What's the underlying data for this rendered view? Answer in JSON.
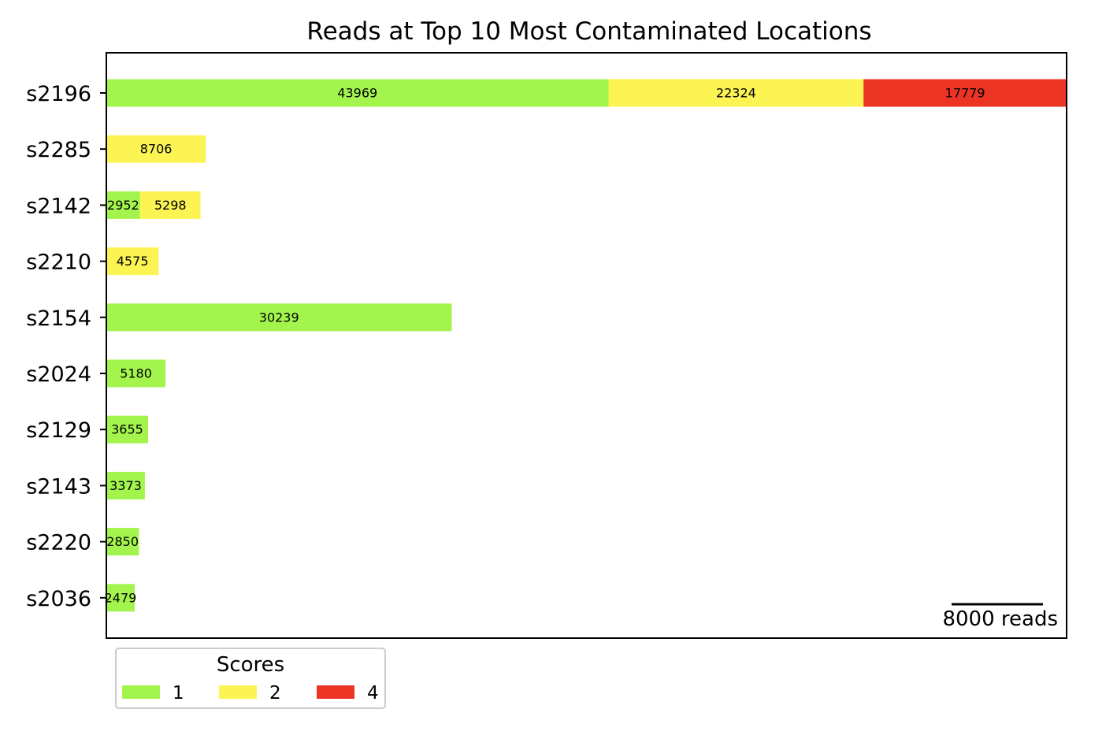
{
  "chart_data": {
    "type": "bar",
    "orientation": "horizontal",
    "stacked": true,
    "title": "Reads at Top 10 Most Contaminated Locations",
    "xlabel": "",
    "ylabel": "",
    "categories": [
      "s2196",
      "s2285",
      "s2142",
      "s2210",
      "s2154",
      "s2024",
      "s2129",
      "s2143",
      "s2220",
      "s2036"
    ],
    "series": [
      {
        "name": "1",
        "color": "#a3f54d",
        "values": [
          43969,
          0,
          2952,
          0,
          30239,
          5180,
          3655,
          3373,
          2850,
          2479
        ]
      },
      {
        "name": "2",
        "color": "#fcf453",
        "values": [
          22324,
          8706,
          5298,
          4575,
          0,
          0,
          0,
          0,
          0,
          0
        ]
      },
      {
        "name": "4",
        "color": "#ec3425",
        "values": [
          17779,
          0,
          0,
          0,
          0,
          0,
          0,
          0,
          0,
          0
        ]
      }
    ],
    "xlim": [
      0,
      84072
    ],
    "x_ticks_shown": false,
    "grid": false,
    "scale_bar": {
      "value": 8000,
      "label": "8000 reads",
      "placement": "bottom-right"
    },
    "legend": {
      "title": "Scores",
      "placement": "below-left",
      "columns": 3
    }
  }
}
